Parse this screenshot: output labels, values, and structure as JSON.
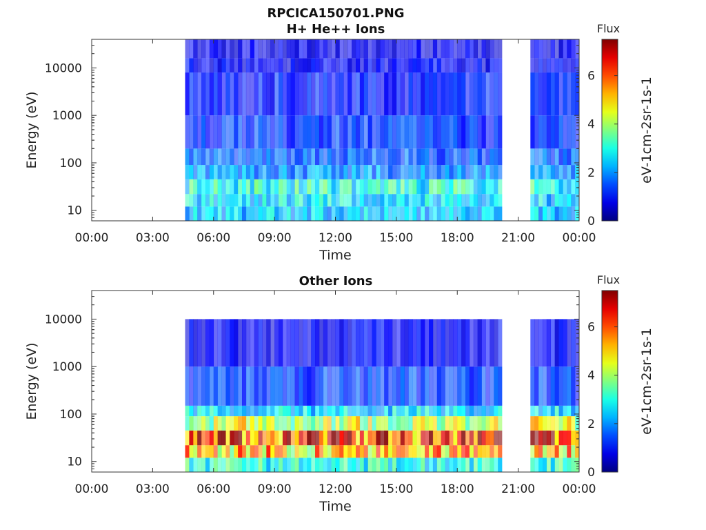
{
  "figure": {
    "title_line1": "RPCICA150701.PNG",
    "title_line2": "H+ He++ Ions"
  },
  "chart_data": [
    {
      "type": "heatmap",
      "title": "H+ He++ Ions",
      "xlabel": "Time",
      "ylabel": "Energy (eV)",
      "x_ticks": [
        "00:00",
        "03:00",
        "06:00",
        "09:00",
        "12:00",
        "15:00",
        "18:00",
        "21:00",
        "00:00"
      ],
      "x_range_hours": [
        0,
        24
      ],
      "y_scale": "log",
      "y_ticks": [
        "10",
        "100",
        "1000",
        "10000"
      ],
      "y_range": [
        6,
        40000
      ],
      "colorbar": {
        "title": "Flux",
        "label": "eV-1cm-2sr-1s-1",
        "ticks": [
          "0",
          "2",
          "4",
          "6"
        ],
        "range": [
          0,
          7.5
        ],
        "colormap": "jet"
      },
      "data_segments_hours": [
        [
          4.6,
          20.2
        ],
        [
          21.6,
          24.0
        ]
      ],
      "bands": [
        {
          "emin": 6,
          "emax": 12,
          "flux": 2.4
        },
        {
          "emin": 12,
          "emax": 22,
          "flux": 2.6
        },
        {
          "emin": 22,
          "emax": 45,
          "flux": 3.0
        },
        {
          "emin": 45,
          "emax": 90,
          "flux": 2.0
        },
        {
          "emin": 90,
          "emax": 200,
          "flux": 1.6
        },
        {
          "emin": 200,
          "emax": 1000,
          "flux": 1.3
        },
        {
          "emin": 1000,
          "emax": 8000,
          "flux": 1.1
        },
        {
          "emin": 8000,
          "emax": 16000,
          "flux": 0.9
        },
        {
          "emin": 16000,
          "emax": 40000,
          "flux": 0.8
        }
      ]
    },
    {
      "type": "heatmap",
      "title": "Other Ions",
      "xlabel": "Time",
      "ylabel": "Energy (eV)",
      "x_ticks": [
        "00:00",
        "03:00",
        "06:00",
        "09:00",
        "12:00",
        "15:00",
        "18:00",
        "21:00",
        "00:00"
      ],
      "x_range_hours": [
        0,
        24
      ],
      "y_scale": "log",
      "y_ticks": [
        "10",
        "100",
        "1000",
        "10000"
      ],
      "y_range": [
        6,
        40000
      ],
      "colorbar": {
        "title": "Flux",
        "label": "eV-1cm-2sr-1s-1",
        "ticks": [
          "0",
          "2",
          "4",
          "6"
        ],
        "range": [
          0,
          7.5
        ],
        "colormap": "jet"
      },
      "data_segments_hours": [
        [
          4.6,
          20.2
        ],
        [
          21.6,
          24.0
        ]
      ],
      "bands": [
        {
          "emin": 6,
          "emax": 12,
          "flux": 3.0
        },
        {
          "emin": 12,
          "emax": 22,
          "flux": 5.0
        },
        {
          "emin": 22,
          "emax": 45,
          "flux": 6.3
        },
        {
          "emin": 45,
          "emax": 90,
          "flux": 4.2
        },
        {
          "emin": 90,
          "emax": 150,
          "flux": 2.6
        },
        {
          "emin": 150,
          "emax": 1000,
          "flux": 1.4
        },
        {
          "emin": 1000,
          "emax": 10000,
          "flux": 0.9
        }
      ]
    }
  ]
}
